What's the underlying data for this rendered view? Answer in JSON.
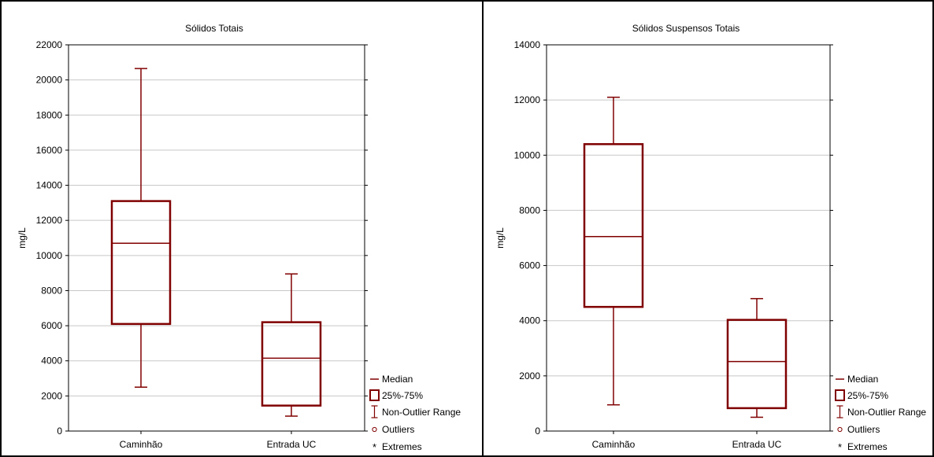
{
  "colors": {
    "box": "#800000",
    "grid": "#c8c8c8",
    "frame": "#000000",
    "background": "#ffffff"
  },
  "legend": {
    "median": "Median",
    "box": "25%-75%",
    "range": "Non-Outlier Range",
    "outliers": "Outliers",
    "extremes": "Extremes"
  },
  "chart_data": [
    {
      "type": "box",
      "title": "Sólidos Totais",
      "ylabel": "mg/L",
      "xlabel": "",
      "ylim": [
        0,
        22000
      ],
      "yticks": [
        0,
        2000,
        4000,
        6000,
        8000,
        10000,
        12000,
        14000,
        16000,
        18000,
        20000,
        22000
      ],
      "grid": true,
      "legend_position": "bottom-right",
      "categories": [
        "Caminhão",
        "Entrada UC"
      ],
      "boxes": [
        {
          "category": "Caminhão",
          "min": 2500,
          "q1": 6100,
          "median": 10700,
          "q3": 13100,
          "max": 20650
        },
        {
          "category": "Entrada UC",
          "min": 850,
          "q1": 1450,
          "median": 4150,
          "q3": 6200,
          "max": 8950
        }
      ]
    },
    {
      "type": "box",
      "title": "Sólidos Suspensos Totais",
      "ylabel": "mg/L",
      "xlabel": "",
      "ylim": [
        0,
        14000
      ],
      "yticks": [
        0,
        2000,
        4000,
        6000,
        8000,
        10000,
        12000,
        14000
      ],
      "grid": true,
      "legend_position": "bottom-right",
      "categories": [
        "Caminhão",
        "Entrada UC"
      ],
      "boxes": [
        {
          "category": "Caminhão",
          "min": 950,
          "q1": 4500,
          "median": 7050,
          "q3": 10400,
          "max": 12100
        },
        {
          "category": "Entrada UC",
          "min": 500,
          "q1": 830,
          "median": 2520,
          "q3": 4030,
          "max": 4800
        }
      ]
    }
  ]
}
